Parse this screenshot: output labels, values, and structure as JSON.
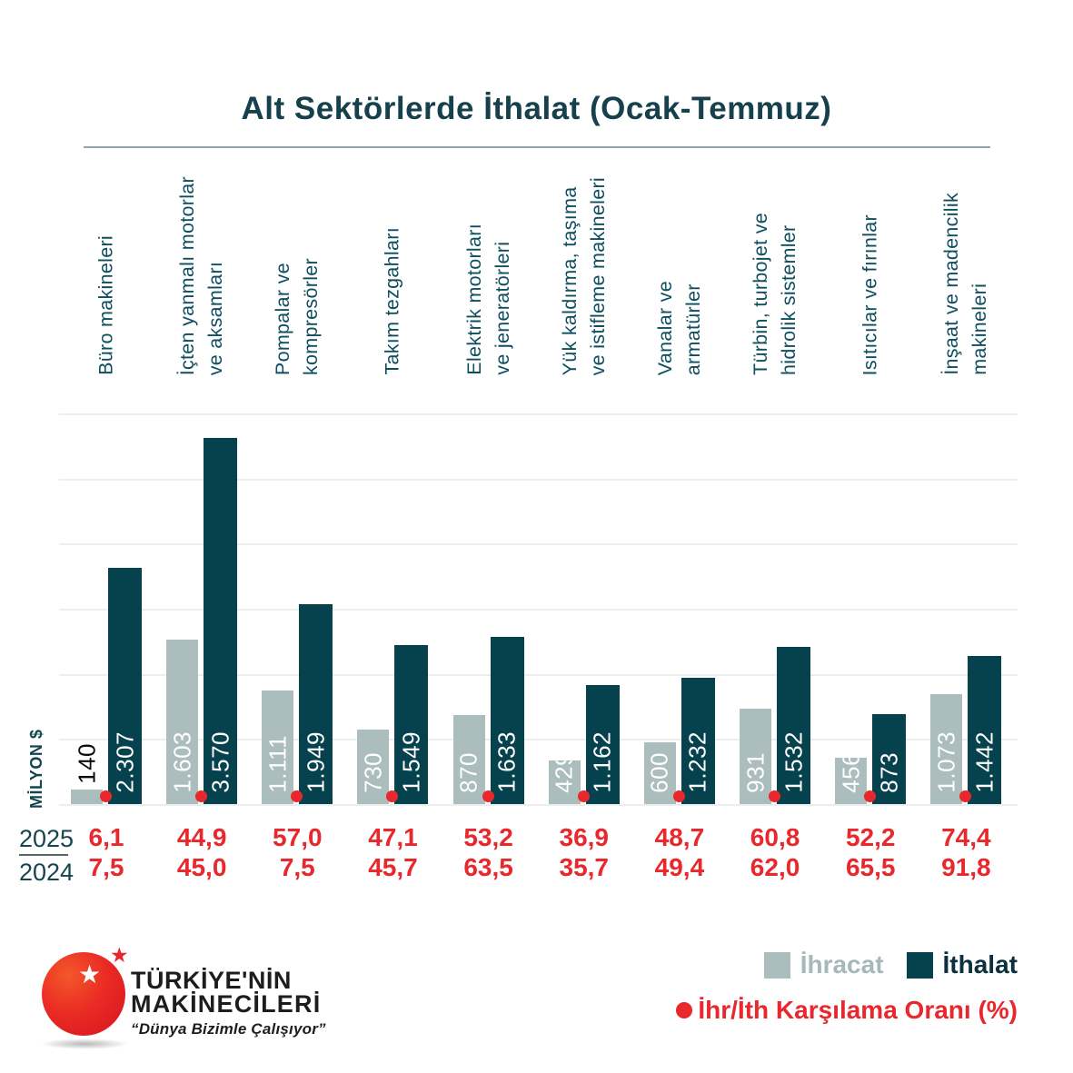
{
  "chart_data": {
    "type": "bar",
    "title": "Alt Sektörlerde İthalat (Ocak-Temmuz)",
    "ylabel": "MİLYON $",
    "ylim": [
      0,
      3808
    ],
    "grid": true,
    "gridline_count": 7,
    "legend_position": "bottom-right",
    "categories": [
      "Büro makineleri",
      "İçten yanmalı motorlar\nve aksamları",
      "Pompalar ve\nkompresörler",
      "Takım tezgahları",
      "Elektrik motorları\nve jeneratörleri",
      "Yük kaldırma, taşıma\nve istifleme makineleri",
      "Vanalar ve\narmatürler",
      "Türbin, turbojet ve\nhidrolik sistemler",
      "Isıtıcılar ve fırınlar",
      "İnşaat ve madencilik\nmakineleri"
    ],
    "series": [
      {
        "name": "İhracat",
        "color": "#abbdbc",
        "values": [
          140,
          1603,
          1111,
          730,
          870,
          429,
          600,
          931,
          456,
          1073
        ],
        "labels": [
          "140",
          "1.603",
          "1.111",
          "730",
          "870",
          "429",
          "600",
          "931",
          "456",
          "1.073"
        ]
      },
      {
        "name": "İthalat",
        "color": "#05424e",
        "values": [
          2307,
          3570,
          1949,
          1549,
          1633,
          1162,
          1232,
          1532,
          873,
          1442
        ],
        "labels": [
          "2.307",
          "3.570",
          "1.949",
          "1.549",
          "1.633",
          "1.162",
          "1.232",
          "1.532",
          "873",
          "1.442"
        ]
      }
    ],
    "ratio_label": "İhr/İth Karşılama Oranı (%)",
    "ratio_color": "#e8282c",
    "ratio_rows": [
      {
        "year": "2025",
        "values": [
          "6,1",
          "44,9",
          "57,0",
          "47,1",
          "53,2",
          "36,9",
          "48,7",
          "60,8",
          "52,2",
          "74,4"
        ]
      },
      {
        "year": "2024",
        "values": [
          "7,5",
          "45,0",
          "7,5",
          "45,7",
          "63,5",
          "35,7",
          "49,4",
          "62,0",
          "65,5",
          "91,8"
        ]
      }
    ]
  },
  "logo": {
    "line1": "TÜRKİYE'NİN",
    "line2": "MAKİNECİLERİ",
    "slogan": "“Dünya Bizimle Çalışıyor”"
  },
  "icons": {
    "white_star": "★",
    "red_star": "★"
  },
  "colors": {
    "title_text": "#16414c",
    "category_text": "#0e4e5f",
    "ihracat_bar": "#abbdbc",
    "ithalat_bar": "#05424e",
    "ratio_red": "#e8282c",
    "gridline": "#eceeee",
    "separator": "#8da6ab"
  }
}
